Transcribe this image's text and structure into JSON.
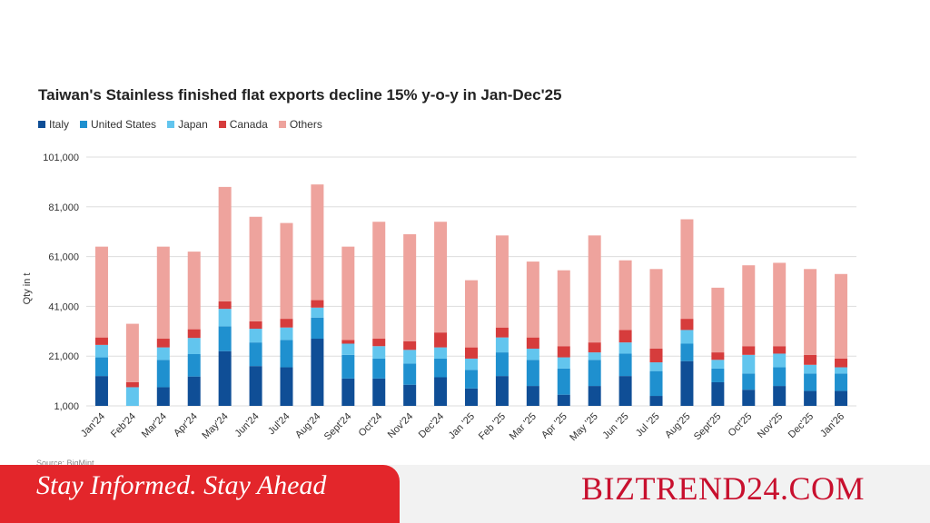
{
  "colors": {
    "italy": "#0f4e96",
    "united_states": "#1f90cf",
    "japan": "#62c5ee",
    "canada": "#d63c3c",
    "others": "#eea39d",
    "grid": "#dddddd",
    "banner_red": "#e3262b",
    "brand_red": "#c8102e"
  },
  "chart_data": {
    "type": "bar",
    "stacked": true,
    "title": "Taiwan's Stainless finished flat exports decline 15% y-o-y in Jan-Dec'25",
    "xlabel": "",
    "ylabel": "Qty in t",
    "ylim": [
      1000,
      101000
    ],
    "yticks": [
      1000,
      21000,
      41000,
      61000,
      81000,
      101000
    ],
    "ytick_labels": [
      "1,000",
      "21,000",
      "41,000",
      "61,000",
      "81,000",
      "101,000"
    ],
    "grid": true,
    "legend_position": "top-left",
    "categories": [
      "Jan'24",
      "Feb'24",
      "Mar'24",
      "Apr'24",
      "May'24",
      "Jun'24",
      "Jul'24",
      "Aug'24",
      "Sept'24",
      "Oct'24",
      "Nov'24",
      "Dec'24",
      "Jan '25",
      "Feb '25",
      "Mar '25",
      "Apr '25",
      "May '25",
      "Jun '25",
      "Jul '25",
      "Aug'25",
      "Sept'25",
      "Oct'25",
      "Nov'25",
      "Dec'25",
      "Jan'26"
    ],
    "series": [
      {
        "name": "Italy",
        "color_key": "italy",
        "values": [
          12000,
          0,
          7500,
          11800,
          22000,
          16000,
          15500,
          27000,
          11000,
          11000,
          8500,
          11500,
          7000,
          12000,
          8000,
          4500,
          8000,
          12000,
          4000,
          18000,
          9500,
          6500,
          8000,
          6000,
          6000
        ]
      },
      {
        "name": "United States",
        "color_key": "united_states",
        "values": [
          7500,
          0,
          11000,
          9000,
          10000,
          9500,
          11000,
          8500,
          9500,
          8000,
          8500,
          7500,
          7500,
          9500,
          10500,
          10500,
          10500,
          9000,
          10000,
          7000,
          5500,
          6500,
          7500,
          7000,
          7000
        ]
      },
      {
        "name": "Japan",
        "color_key": "japan",
        "values": [
          5000,
          7500,
          5000,
          6500,
          7000,
          5500,
          5000,
          4000,
          4500,
          5000,
          5500,
          4500,
          4500,
          6000,
          4500,
          4500,
          3000,
          4500,
          3500,
          5500,
          3500,
          7500,
          5500,
          3500,
          2500
        ]
      },
      {
        "name": "Canada",
        "color_key": "canada",
        "values": [
          3000,
          2000,
          3500,
          3500,
          3000,
          3000,
          3500,
          3000,
          1500,
          3000,
          3500,
          6000,
          4500,
          4000,
          4500,
          4500,
          4000,
          5000,
          5500,
          4500,
          3000,
          3500,
          3000,
          4000,
          3500
        ]
      },
      {
        "name": "Others",
        "color_key": "others",
        "values": [
          36500,
          23500,
          37000,
          31200,
          46000,
          42000,
          38500,
          46500,
          37500,
          47000,
          43000,
          44500,
          27000,
          37000,
          30500,
          30500,
          43000,
          28000,
          32000,
          40000,
          26000,
          32500,
          33500,
          34500,
          34000
        ]
      }
    ]
  },
  "footer": {
    "source_note": "Source: BigMint",
    "tagline": "Stay Informed. Stay Ahead",
    "brand": "BIZTREND24.COM"
  }
}
